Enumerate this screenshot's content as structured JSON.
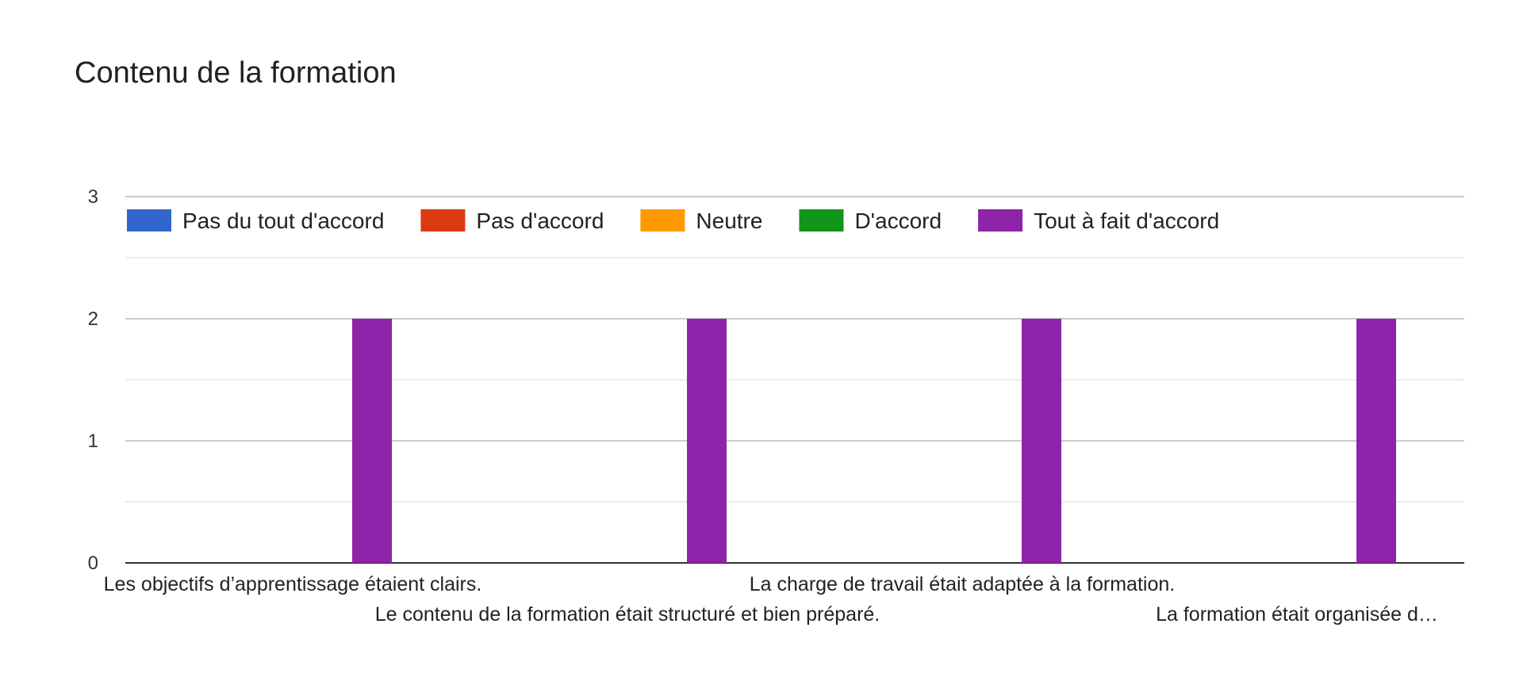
{
  "chart_data": {
    "type": "bar",
    "title": "Contenu de la formation",
    "categories": [
      "Les objectifs d’apprentissage étaient clairs.",
      "Le contenu de la formation était structuré et bien préparé.",
      "La charge de travail était adaptée à la formation.",
      "La formation était organisée d…"
    ],
    "series": [
      {
        "name": "Pas du tout d'accord",
        "color": "#3366cc",
        "values": [
          0,
          0,
          0,
          0
        ]
      },
      {
        "name": "Pas d'accord",
        "color": "#dc3912",
        "values": [
          0,
          0,
          0,
          0
        ]
      },
      {
        "name": "Neutre",
        "color": "#ff9900",
        "values": [
          0,
          0,
          0,
          0
        ]
      },
      {
        "name": "D'accord",
        "color": "#109618",
        "values": [
          0,
          0,
          0,
          0
        ]
      },
      {
        "name": "Tout à fait d'accord",
        "color": "#8e24aa",
        "values": [
          2,
          2,
          2,
          2
        ]
      }
    ],
    "ylim": [
      0,
      3
    ],
    "yticks": [
      0,
      1,
      2,
      3
    ],
    "grid": true,
    "legend_position": "top-left"
  }
}
